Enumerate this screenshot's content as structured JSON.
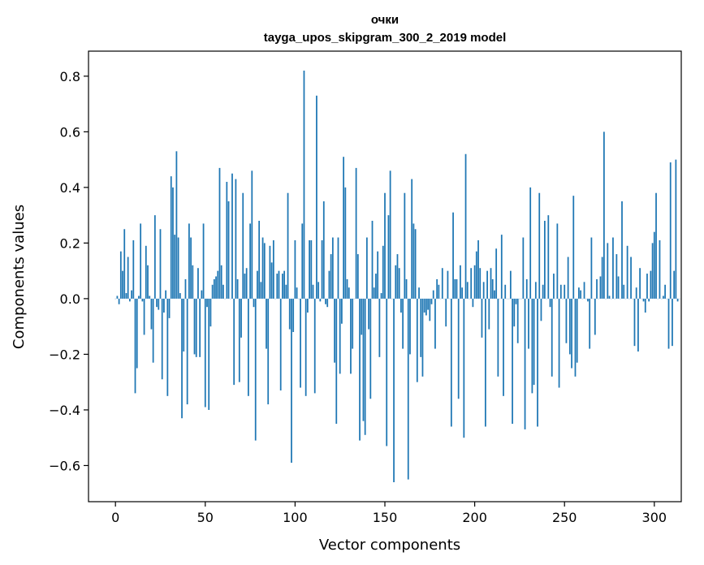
{
  "chart_data": {
    "type": "bar",
    "title": "очки",
    "subtitle": "tayga_upos_skipgram_300_2_2019 model",
    "xlabel": "Vector components",
    "ylabel": "Components values",
    "xlim": [
      -15,
      315
    ],
    "ylim": [
      -0.73,
      0.89
    ],
    "xticks": [
      0,
      50,
      100,
      150,
      200,
      250,
      300
    ],
    "yticks": [
      -0.6,
      -0.4,
      -0.2,
      0.0,
      0.2,
      0.4,
      0.6,
      0.8
    ],
    "ytick_labels": [
      "−0.6",
      "−0.4",
      "−0.2",
      "0.0",
      "0.2",
      "0.4",
      "0.6",
      "0.8"
    ],
    "xtick_labels": [
      "0",
      "50",
      "100",
      "150",
      "200",
      "250",
      "300"
    ],
    "bar_color": "#1f77b4",
    "values": [
      0.0,
      0.01,
      -0.02,
      0.17,
      0.1,
      0.25,
      0.02,
      0.15,
      -0.01,
      0.03,
      0.21,
      -0.34,
      -0.25,
      0.01,
      0.27,
      -0.01,
      -0.13,
      0.19,
      0.12,
      0.01,
      -0.11,
      -0.23,
      0.3,
      -0.03,
      -0.04,
      0.25,
      -0.29,
      -0.05,
      0.03,
      -0.35,
      -0.07,
      0.44,
      0.4,
      0.23,
      0.53,
      0.22,
      0.02,
      -0.43,
      -0.19,
      0.07,
      -0.38,
      0.27,
      0.22,
      0.12,
      -0.2,
      -0.21,
      0.11,
      -0.21,
      0.03,
      0.27,
      -0.39,
      -0.03,
      -0.4,
      -0.1,
      0.05,
      0.07,
      0.08,
      0.1,
      0.47,
      0.12,
      0.05,
      0.0,
      0.42,
      0.35,
      0.0,
      0.45,
      -0.31,
      0.43,
      0.07,
      -0.3,
      -0.14,
      0.38,
      0.09,
      0.11,
      -0.35,
      0.27,
      0.46,
      -0.03,
      -0.51,
      0.1,
      0.28,
      0.06,
      0.22,
      0.2,
      -0.18,
      -0.38,
      0.19,
      0.13,
      0.21,
      0.0,
      0.09,
      0.1,
      -0.33,
      0.09,
      0.1,
      0.05,
      0.38,
      -0.11,
      -0.59,
      -0.12,
      0.21,
      0.04,
      0.0,
      -0.32,
      0.27,
      0.82,
      -0.35,
      -0.05,
      0.21,
      0.21,
      0.05,
      -0.34,
      0.73,
      0.06,
      -0.01,
      0.21,
      0.35,
      -0.02,
      -0.03,
      0.1,
      0.16,
      0.22,
      -0.23,
      -0.45,
      0.22,
      -0.27,
      -0.09,
      0.51,
      0.4,
      0.07,
      0.04,
      -0.27,
      -0.18,
      0.0,
      0.47,
      0.16,
      -0.51,
      -0.13,
      -0.44,
      -0.49,
      0.22,
      -0.11,
      -0.36,
      0.28,
      0.04,
      0.09,
      0.17,
      -0.21,
      0.02,
      0.19,
      0.38,
      -0.53,
      0.3,
      0.46,
      0.0,
      -0.66,
      0.12,
      0.16,
      0.11,
      -0.05,
      -0.18,
      0.38,
      0.07,
      -0.65,
      -0.2,
      0.43,
      0.27,
      0.25,
      -0.3,
      0.04,
      -0.21,
      -0.28,
      -0.05,
      -0.06,
      -0.04,
      -0.08,
      -0.02,
      0.03,
      -0.18,
      0.07,
      0.05,
      0.0,
      0.11,
      0.0,
      -0.1,
      0.1,
      0.0,
      -0.46,
      0.31,
      0.07,
      0.07,
      -0.36,
      0.12,
      0.04,
      -0.5,
      0.52,
      0.06,
      0.0,
      0.11,
      -0.03,
      0.12,
      0.17,
      0.21,
      0.11,
      -0.14,
      0.06,
      -0.46,
      0.1,
      -0.11,
      0.11,
      0.07,
      0.03,
      0.18,
      -0.28,
      0.0,
      0.23,
      -0.35,
      0.05,
      0.0,
      0.0,
      0.1,
      -0.45,
      -0.1,
      -0.02,
      -0.16,
      0.0,
      0.0,
      0.22,
      -0.47,
      0.07,
      -0.18,
      0.4,
      -0.34,
      -0.31,
      0.06,
      -0.46,
      0.38,
      -0.08,
      0.05,
      0.28,
      0.0,
      0.3,
      -0.03,
      -0.28,
      0.09,
      0.0,
      0.27,
      -0.32,
      0.05,
      0.0,
      0.05,
      -0.16,
      0.15,
      -0.2,
      -0.25,
      0.37,
      -0.28,
      -0.23,
      0.04,
      0.03,
      0.0,
      0.06,
      0.0,
      -0.01,
      -0.18,
      0.22,
      0.0,
      -0.13,
      0.07,
      0.0,
      0.08,
      0.15,
      0.6,
      0.0,
      0.2,
      0.01,
      0.0,
      0.22,
      0.0,
      0.16,
      0.08,
      0.0,
      0.35,
      0.05,
      0.0,
      0.19,
      0.0,
      0.15,
      0.0,
      -0.17,
      0.04,
      -0.19,
      0.11,
      0.0,
      -0.01,
      -0.05,
      0.09,
      -0.01,
      0.1,
      0.2,
      0.24,
      0.38,
      0.0,
      0.21,
      0.0,
      0.01,
      0.05,
      0.0,
      -0.18,
      0.49,
      -0.17,
      0.1,
      0.5,
      -0.01,
      0.0
    ]
  }
}
